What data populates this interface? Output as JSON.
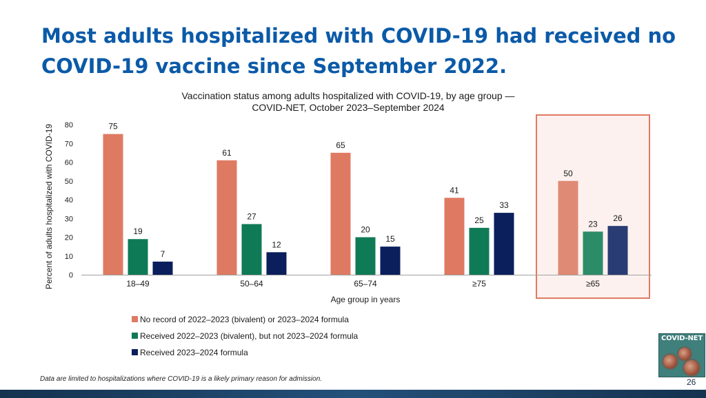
{
  "slide": {
    "title": "Most adults hospitalized with COVID-19 had received no COVID-19 vaccine since September 2022.",
    "footnote": "Data are limited to hospitalizations where COVID-19 is a likely primary reason for admission.",
    "page_number": "26",
    "logo_text": "COVID-NET"
  },
  "chart_data": {
    "type": "bar",
    "title": "Vaccination status among adults hospitalized with COVID-19, by age group —",
    "subtitle": "COVID-NET, October 2023–September 2024",
    "xlabel": "Age group in years",
    "ylabel": "Percent of adults hospitalized with COVID-19",
    "ylim": [
      0,
      80
    ],
    "yticks": [
      0,
      10,
      20,
      30,
      40,
      50,
      60,
      70,
      80
    ],
    "grid": false,
    "legend_position": "bottom-left",
    "categories": [
      "18–49",
      "50–64",
      "65–74",
      "≥75",
      "≥65"
    ],
    "highlighted_category": "≥65",
    "series": [
      {
        "name": "No record of 2022–2023 (bivalent) or 2023–2024 formula",
        "color": "#df7a62",
        "highlight_color": "#df8a74",
        "values": [
          75,
          61,
          65,
          41,
          50
        ]
      },
      {
        "name": "Received 2022–2023 (bivalent), but not 2023–2024 formula",
        "color": "#0f7a56",
        "highlight_color": "#2c8c68",
        "values": [
          19,
          27,
          20,
          25,
          23
        ]
      },
      {
        "name": "Received 2023–2024 formula",
        "color": "#0a1f5c",
        "highlight_color": "#293c73",
        "values": [
          7,
          12,
          15,
          33,
          26
        ]
      }
    ],
    "highlight_box_color": "#e07a62",
    "highlight_fill": "#fcf1ee"
  }
}
